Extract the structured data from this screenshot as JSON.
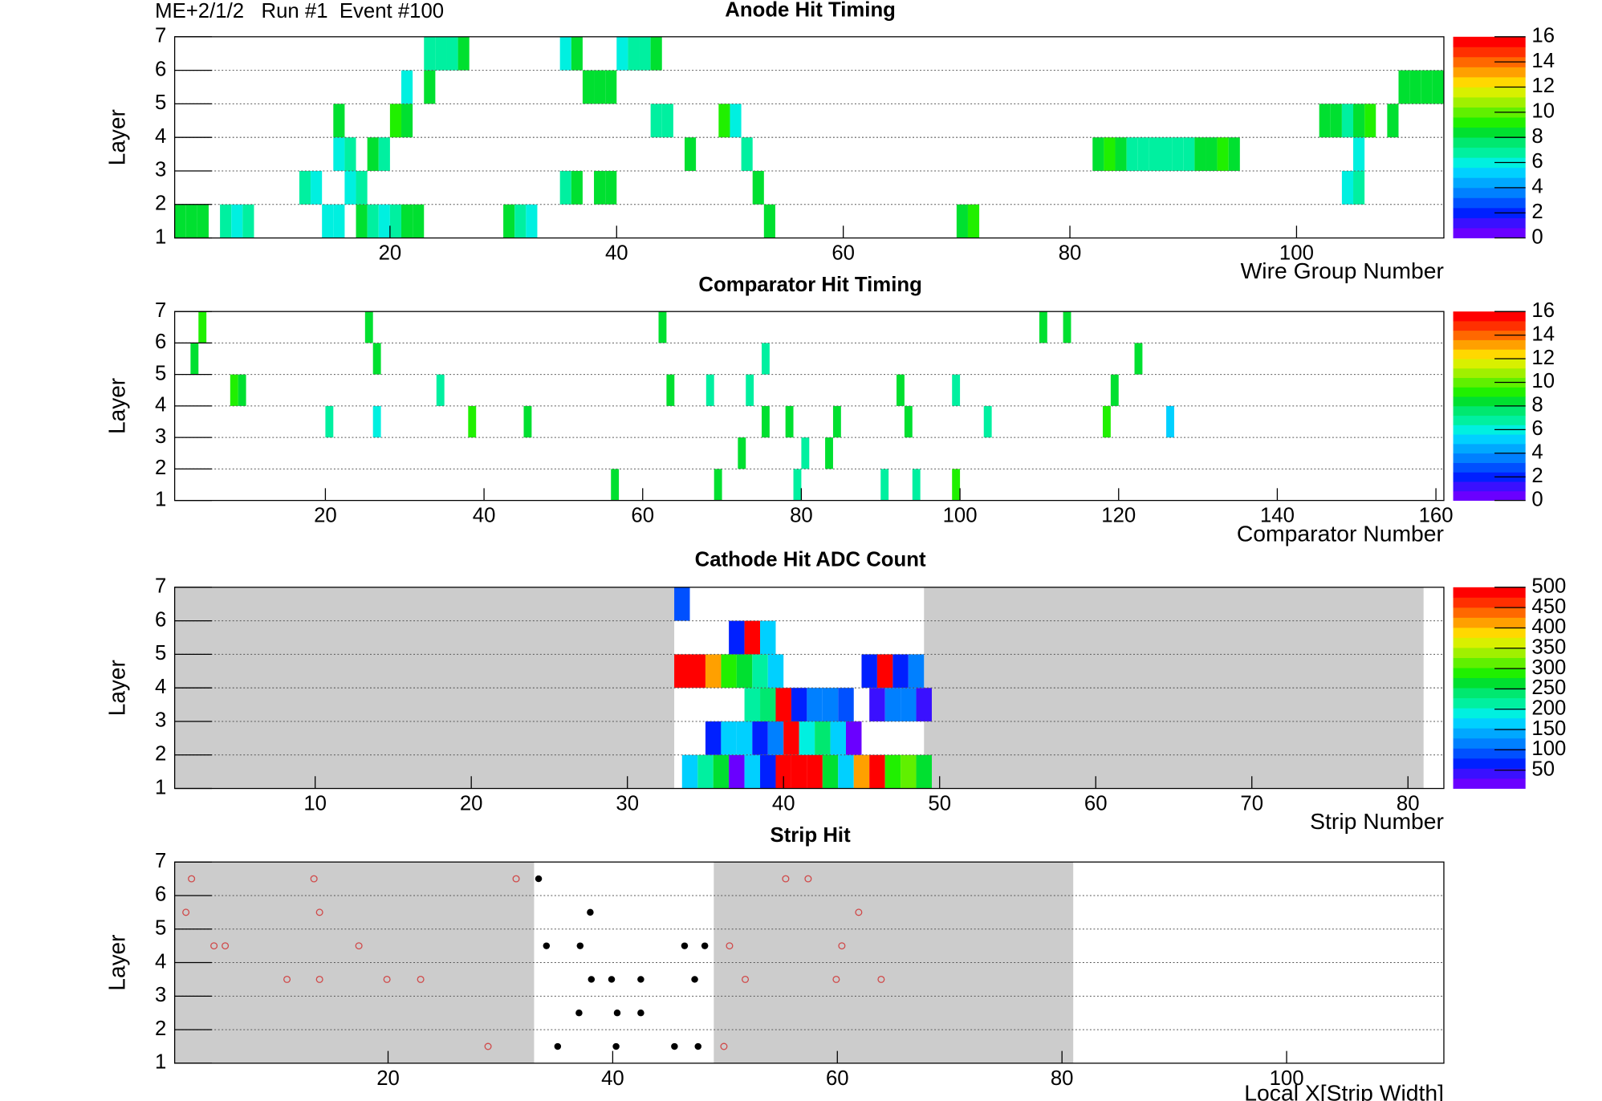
{
  "header": "ME+2/1/2   Run #1  Event #100",
  "chart_data": [
    {
      "type": "heatmap",
      "title": "Anode Hit Timing",
      "x_label": "Wire Group Number",
      "y_label": "Layer",
      "xlim": [
        1,
        113
      ],
      "ylim": [
        1,
        7
      ],
      "xticks": [
        20,
        40,
        60,
        80,
        100
      ],
      "yticks": [
        1,
        2,
        3,
        4,
        5,
        6,
        7
      ],
      "grid": true,
      "zlim": [
        0,
        16
      ],
      "zticks": [
        0,
        2,
        4,
        6,
        8,
        10,
        12,
        14,
        16
      ],
      "bin_width": 1,
      "palette": [
        "#6a00ff",
        "#3a10ff",
        "#0020ff",
        "#0050ff",
        "#0080ff",
        "#00a8ff",
        "#00d0ff",
        "#00f0e0",
        "#00f0a0",
        "#00e870",
        "#00e030",
        "#20f000",
        "#60f000",
        "#a0f000",
        "#d8f000",
        "#ffd800",
        "#ffa000",
        "#ff6800",
        "#ff3000",
        "#ff0000"
      ],
      "x": [
        1,
        2,
        3,
        5,
        6,
        7,
        14,
        15,
        17,
        18,
        19,
        20,
        21,
        22,
        30,
        31,
        32,
        53,
        70,
        71,
        12,
        13,
        16,
        17,
        35,
        36,
        38,
        39,
        52,
        104,
        105,
        15,
        16,
        18,
        19,
        46,
        51,
        82,
        83,
        84,
        85,
        86,
        87,
        88,
        89,
        90,
        91,
        92,
        93,
        94,
        105,
        15,
        20,
        21,
        43,
        44,
        49,
        50,
        102,
        103,
        104,
        105,
        106,
        108,
        21,
        23,
        37,
        38,
        39,
        109,
        110,
        111,
        112,
        23,
        24,
        25,
        26,
        35,
        36,
        40,
        41,
        42,
        43
      ],
      "y": [
        1,
        1,
        1,
        1,
        1,
        1,
        1,
        1,
        1,
        1,
        1,
        1,
        1,
        1,
        1,
        1,
        1,
        1,
        1,
        1,
        2,
        2,
        2,
        2,
        2,
        2,
        2,
        2,
        2,
        2,
        2,
        3,
        3,
        3,
        3,
        3,
        3,
        3,
        3,
        3,
        3,
        3,
        3,
        3,
        3,
        3,
        3,
        3,
        3,
        3,
        3,
        4,
        4,
        4,
        4,
        4,
        4,
        4,
        4,
        4,
        4,
        4,
        4,
        4,
        5,
        5,
        5,
        5,
        5,
        5,
        5,
        5,
        5,
        6,
        6,
        6,
        6,
        6,
        6,
        6,
        6,
        6,
        6
      ],
      "values": [
        8,
        8,
        8,
        7,
        6,
        7,
        6,
        6,
        8,
        7,
        6,
        7,
        8,
        8,
        8,
        7,
        6,
        8,
        8,
        9,
        7,
        6,
        6,
        7,
        7,
        8,
        8,
        8,
        8,
        6,
        7,
        6,
        7,
        8,
        7,
        8,
        7,
        8,
        9,
        8,
        7,
        7,
        7,
        7,
        7,
        7,
        8,
        8,
        9,
        8,
        6,
        8,
        9,
        8,
        7,
        7,
        9,
        6,
        8,
        8,
        7,
        8,
        9,
        8,
        6,
        8,
        8,
        8,
        8,
        8,
        8,
        8,
        8,
        7,
        7,
        7,
        8,
        6,
        8,
        6,
        7,
        7,
        8
      ]
    },
    {
      "type": "heatmap",
      "title": "Comparator Hit Timing",
      "x_label": "Comparator Number",
      "y_label": "Layer",
      "xlim": [
        1,
        161
      ],
      "ylim": [
        1,
        7
      ],
      "xticks": [
        20,
        40,
        60,
        80,
        100,
        120,
        140,
        160
      ],
      "yticks": [
        1,
        2,
        3,
        4,
        5,
        6,
        7
      ],
      "grid": true,
      "zlim": [
        0,
        16
      ],
      "zticks": [
        0,
        2,
        4,
        6,
        8,
        10,
        12,
        14,
        16
      ],
      "bin_width": 1,
      "palette": [
        "#6a00ff",
        "#3a10ff",
        "#0020ff",
        "#0050ff",
        "#0080ff",
        "#00a8ff",
        "#00d0ff",
        "#00f0e0",
        "#00f0a0",
        "#00e870",
        "#00e030",
        "#20f000",
        "#60f000",
        "#a0f000",
        "#d8f000",
        "#ffd800",
        "#ffa000",
        "#ff6800",
        "#ff3000",
        "#ff0000"
      ],
      "x": [
        56,
        69,
        79,
        90,
        94,
        99,
        72,
        80,
        83,
        20,
        26,
        38,
        45,
        75,
        78,
        84,
        93,
        103,
        118,
        126,
        8,
        9,
        34,
        63,
        68,
        73,
        92,
        99,
        119,
        3,
        26,
        75,
        122,
        4,
        25,
        62,
        110,
        113
      ],
      "y": [
        1,
        1,
        1,
        1,
        1,
        1,
        2,
        2,
        2,
        3,
        3,
        3,
        3,
        3,
        3,
        3,
        3,
        3,
        3,
        3,
        4,
        4,
        4,
        4,
        4,
        4,
        4,
        4,
        4,
        5,
        5,
        5,
        5,
        6,
        6,
        6,
        6,
        6
      ],
      "values": [
        8,
        8,
        7,
        7,
        7,
        9,
        8,
        7,
        8,
        7,
        6,
        9,
        8,
        8,
        8,
        8,
        8,
        7,
        9,
        5,
        9,
        8,
        7,
        8,
        7,
        7,
        8,
        7,
        8,
        8,
        8,
        7,
        8,
        9,
        8,
        8,
        8,
        8
      ]
    },
    {
      "type": "heatmap",
      "title": "Cathode Hit ADC Count",
      "x_label": "Strip Number",
      "y_label": "Layer",
      "xlim": [
        1,
        82.3
      ],
      "ylim": [
        1,
        7
      ],
      "xticks": [
        10,
        20,
        30,
        40,
        50,
        60,
        70,
        80
      ],
      "yticks": [
        1,
        2,
        3,
        4,
        5,
        6,
        7
      ],
      "grid": true,
      "zlim": [
        5,
        500
      ],
      "zticks": [
        50,
        100,
        150,
        200,
        250,
        300,
        350,
        400,
        450,
        500
      ],
      "bin_width": 1,
      "shade_color": "#cccccc",
      "shade_ranges": [
        [
          1,
          33
        ],
        [
          49,
          81
        ]
      ],
      "palette": [
        "#6a00ff",
        "#3a10ff",
        "#0020ff",
        "#0050ff",
        "#0080ff",
        "#00a8ff",
        "#00d0ff",
        "#00f0e0",
        "#00f0a0",
        "#00e870",
        "#00e030",
        "#20f000",
        "#60f000",
        "#a0f000",
        "#d8f000",
        "#ffd800",
        "#ffa000",
        "#ff6800",
        "#ff3000",
        "#ff0000"
      ],
      "x": [
        33.5,
        34.5,
        35.5,
        36.5,
        37.5,
        38.5,
        39.5,
        40.5,
        41.5,
        42.5,
        43.5,
        44.5,
        45.5,
        46.5,
        47.5,
        48.5,
        35,
        36,
        37,
        38,
        39,
        40,
        41,
        42,
        43,
        44,
        37.5,
        38.5,
        39.5,
        40.5,
        41.5,
        42.5,
        43.5,
        45.5,
        46.5,
        47.5,
        48.5,
        33,
        34,
        35,
        36,
        37,
        38,
        39,
        45,
        46,
        47,
        48,
        36.5,
        37.5,
        38.5,
        33
      ],
      "y": [
        1,
        1,
        1,
        1,
        1,
        1,
        1,
        1,
        1,
        1,
        1,
        1,
        1,
        1,
        1,
        1,
        2,
        2,
        2,
        2,
        2,
        2,
        2,
        2,
        2,
        2,
        3,
        3,
        3,
        3,
        3,
        3,
        3,
        3,
        3,
        3,
        3,
        4,
        4,
        4,
        4,
        4,
        4,
        4,
        4,
        4,
        4,
        4,
        5,
        5,
        5,
        6
      ],
      "values": [
        165,
        210,
        265,
        25,
        165,
        70,
        500,
        500,
        500,
        265,
        165,
        420,
        500,
        280,
        320,
        265,
        70,
        165,
        165,
        70,
        110,
        500,
        190,
        240,
        165,
        25,
        210,
        250,
        500,
        70,
        120,
        120,
        80,
        30,
        120,
        120,
        50,
        500,
        500,
        420,
        280,
        265,
        215,
        165,
        70,
        500,
        70,
        120,
        70,
        500,
        165,
        80
      ]
    },
    {
      "type": "scatter",
      "title": "Strip Hit",
      "x_label": "Local X[Strip Width]",
      "y_label": "Layer",
      "xlim": [
        1,
        114
      ],
      "ylim": [
        1,
        7
      ],
      "xticks": [
        20,
        40,
        60,
        80,
        100
      ],
      "yticks": [
        1,
        2,
        3,
        4,
        5,
        6,
        7
      ],
      "grid": true,
      "shade_color": "#cccccc",
      "shade_ranges": [
        [
          1,
          33
        ],
        [
          49,
          81
        ]
      ],
      "series": [
        {
          "color": "#d04848",
          "marker": "open",
          "x": [
            2.5,
            13.4,
            31.4,
            55.4,
            57.4,
            2.0,
            13.9,
            61.9,
            4.5,
            5.5,
            17.4,
            50.4,
            60.4,
            11.0,
            13.9,
            19.9,
            22.9,
            51.8,
            59.9,
            63.9,
            28.9,
            49.9
          ],
          "y": [
            6.5,
            6.5,
            6.5,
            6.5,
            6.5,
            5.5,
            5.5,
            5.5,
            4.5,
            4.5,
            4.5,
            4.5,
            4.5,
            3.5,
            3.5,
            3.5,
            3.5,
            3.5,
            3.5,
            3.5,
            1.5,
            1.5
          ]
        },
        {
          "color": "#000000",
          "marker": "filled",
          "x": [
            33.4,
            38.0,
            34.1,
            37.1,
            46.4,
            48.2,
            38.1,
            39.9,
            42.5,
            47.3,
            37.0,
            40.4,
            42.5,
            35.1,
            40.3,
            45.5,
            47.6
          ],
          "y": [
            6.5,
            5.5,
            4.5,
            4.5,
            4.5,
            4.5,
            3.5,
            3.5,
            3.5,
            3.5,
            2.5,
            2.5,
            2.5,
            1.5,
            1.5,
            1.5,
            1.5
          ]
        }
      ]
    }
  ]
}
